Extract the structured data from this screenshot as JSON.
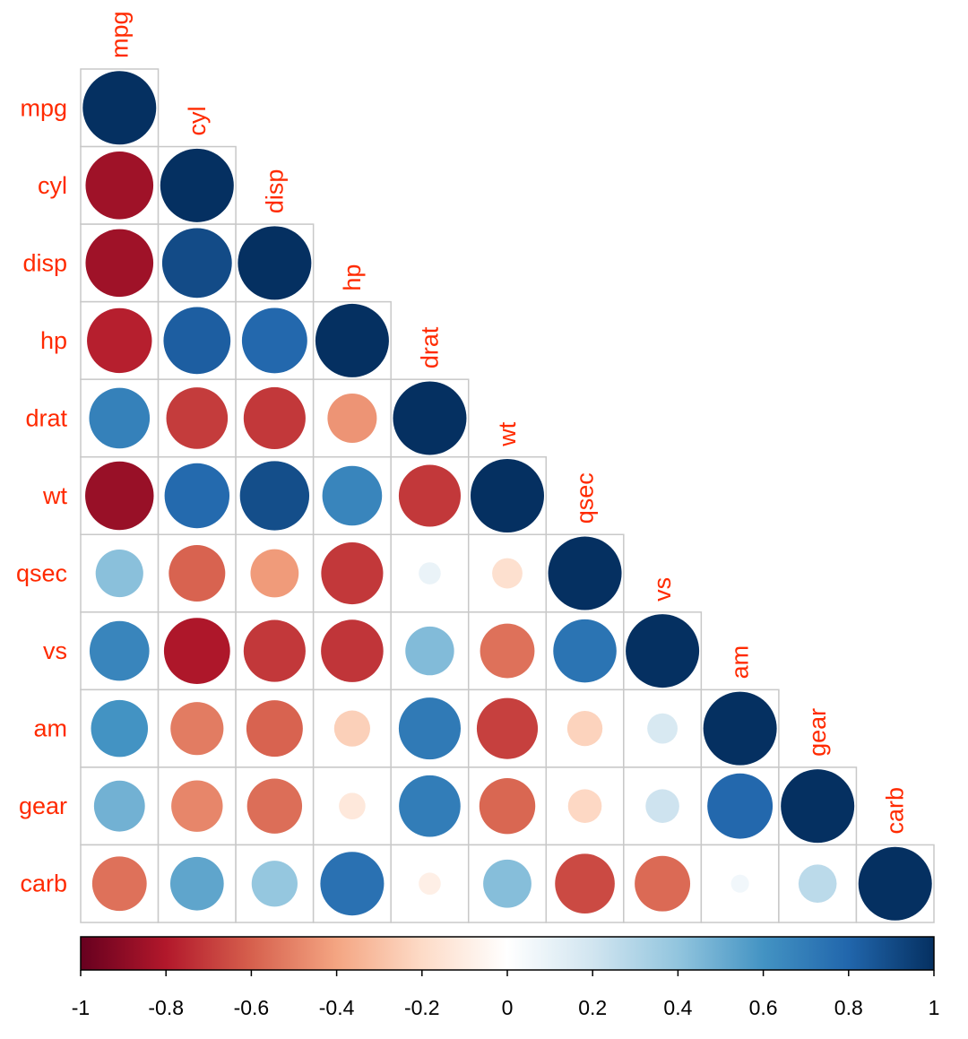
{
  "chart_data": {
    "type": "heatmap",
    "subtype": "corrplot-circle-lower",
    "variables": [
      "mpg",
      "cyl",
      "disp",
      "hp",
      "drat",
      "wt",
      "qsec",
      "vs",
      "am",
      "gear",
      "carb"
    ],
    "matrix": [
      [
        1,
        -0.85,
        -0.85,
        -0.78,
        0.68,
        -0.87,
        0.42,
        0.66,
        0.6,
        0.48,
        -0.55
      ],
      [
        -0.85,
        1,
        0.9,
        0.83,
        -0.7,
        0.78,
        -0.59,
        -0.81,
        -0.52,
        -0.49,
        0.53
      ],
      [
        -0.85,
        0.9,
        1,
        0.79,
        -0.71,
        0.89,
        -0.43,
        -0.71,
        -0.59,
        -0.56,
        0.39
      ],
      [
        -0.78,
        0.83,
        0.79,
        1,
        -0.45,
        0.66,
        -0.71,
        -0.72,
        -0.24,
        -0.13,
        0.75
      ],
      [
        0.68,
        -0.7,
        -0.71,
        -0.45,
        1,
        -0.71,
        0.09,
        0.44,
        0.71,
        0.7,
        -0.09
      ],
      [
        -0.87,
        0.78,
        0.89,
        0.66,
        -0.71,
        1,
        -0.17,
        -0.55,
        -0.69,
        -0.58,
        0.43
      ],
      [
        0.42,
        -0.59,
        -0.43,
        -0.71,
        0.09,
        -0.17,
        1,
        0.74,
        -0.23,
        -0.21,
        -0.66
      ],
      [
        0.66,
        -0.81,
        -0.71,
        -0.72,
        0.44,
        -0.55,
        0.74,
        1,
        0.17,
        0.21,
        -0.57
      ],
      [
        0.6,
        -0.52,
        -0.59,
        -0.24,
        0.71,
        -0.69,
        -0.23,
        0.17,
        1,
        0.79,
        0.06
      ],
      [
        0.48,
        -0.49,
        -0.56,
        -0.13,
        0.7,
        -0.58,
        -0.21,
        0.21,
        0.79,
        1,
        0.27
      ],
      [
        -0.55,
        0.53,
        0.39,
        0.75,
        -0.09,
        0.43,
        -0.66,
        -0.57,
        0.06,
        0.27,
        1
      ]
    ],
    "colorbar": {
      "range": [
        -1,
        1
      ],
      "ticks": [
        "-1",
        "-0.8",
        "-0.6",
        "-0.4",
        "-0.2",
        "0",
        "0.2",
        "0.4",
        "0.6",
        "0.8",
        "1"
      ]
    },
    "colors": {
      "label": "#FF2A00",
      "stops": [
        "#67001F",
        "#B2182B",
        "#D6604D",
        "#F4A582",
        "#FDDBC7",
        "#FFFFFF",
        "#D1E5F0",
        "#92C5DE",
        "#4393C3",
        "#2166AC",
        "#053061"
      ]
    }
  }
}
